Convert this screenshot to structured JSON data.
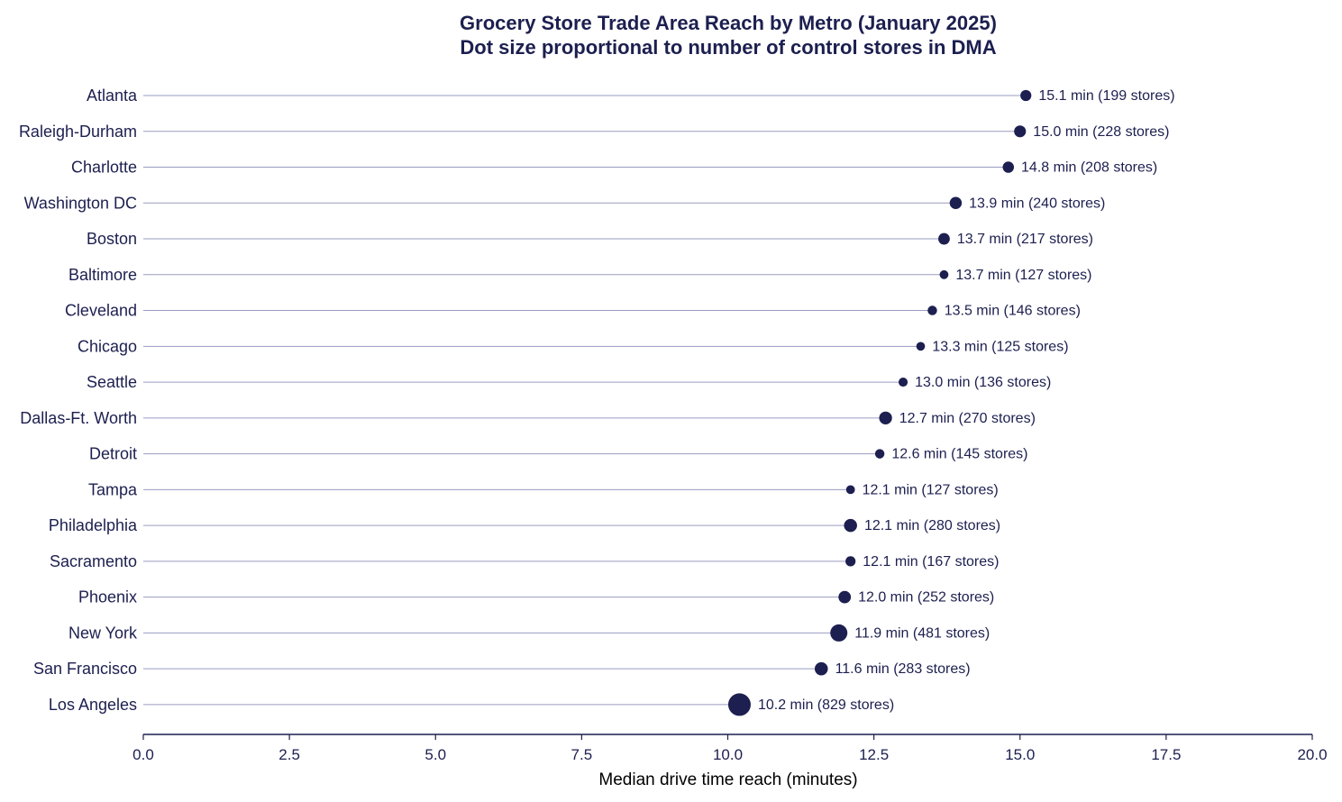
{
  "chart_data": {
    "type": "lollipop",
    "title_line1": "Grocery Store Trade Area Reach by Metro (January 2025)",
    "title_line2": "Dot size proportional to number of control stores in DMA",
    "xlabel": "Median drive time reach (minutes)",
    "xlim": [
      0,
      20
    ],
    "xticks": [
      "0.0",
      "2.5",
      "5.0",
      "7.5",
      "10.0",
      "12.5",
      "15.0",
      "17.5",
      "20.0"
    ],
    "grid": false,
    "colors": {
      "dot": "#1c1f4f",
      "stem": "#9a9cc0",
      "axis": "#1c1f4f",
      "text": "#1c1f4f"
    },
    "rows": [
      {
        "metro": "Atlanta",
        "minutes": 15.1,
        "stores": 199,
        "label": "15.1 min (199 stores)"
      },
      {
        "metro": "Raleigh-Durham",
        "minutes": 15.0,
        "stores": 228,
        "label": "15.0 min (228 stores)"
      },
      {
        "metro": "Charlotte",
        "minutes": 14.8,
        "stores": 208,
        "label": "14.8 min (208 stores)"
      },
      {
        "metro": "Washington DC",
        "minutes": 13.9,
        "stores": 240,
        "label": "13.9 min (240 stores)"
      },
      {
        "metro": "Boston",
        "minutes": 13.7,
        "stores": 217,
        "label": "13.7 min (217 stores)"
      },
      {
        "metro": "Baltimore",
        "minutes": 13.7,
        "stores": 127,
        "label": "13.7 min (127 stores)"
      },
      {
        "metro": "Cleveland",
        "minutes": 13.5,
        "stores": 146,
        "label": "13.5 min (146 stores)"
      },
      {
        "metro": "Chicago",
        "minutes": 13.3,
        "stores": 125,
        "label": "13.3 min (125 stores)"
      },
      {
        "metro": "Seattle",
        "minutes": 13.0,
        "stores": 136,
        "label": "13.0 min (136 stores)"
      },
      {
        "metro": "Dallas-Ft. Worth",
        "minutes": 12.7,
        "stores": 270,
        "label": "12.7 min (270 stores)"
      },
      {
        "metro": "Detroit",
        "minutes": 12.6,
        "stores": 145,
        "label": "12.6 min (145 stores)"
      },
      {
        "metro": "Tampa",
        "minutes": 12.1,
        "stores": 127,
        "label": "12.1 min (127 stores)"
      },
      {
        "metro": "Philadelphia",
        "minutes": 12.1,
        "stores": 280,
        "label": "12.1 min (280 stores)"
      },
      {
        "metro": "Sacramento",
        "minutes": 12.1,
        "stores": 167,
        "label": "12.1 min (167 stores)"
      },
      {
        "metro": "Phoenix",
        "minutes": 12.0,
        "stores": 252,
        "label": "12.0 min (252 stores)"
      },
      {
        "metro": "New York",
        "minutes": 11.9,
        "stores": 481,
        "label": "11.9 min (481 stores)"
      },
      {
        "metro": "San Francisco",
        "minutes": 11.6,
        "stores": 283,
        "label": "11.6 min (283 stores)"
      },
      {
        "metro": "Los Angeles",
        "minutes": 10.2,
        "stores": 829,
        "label": "10.2 min (829 stores)"
      }
    ]
  }
}
